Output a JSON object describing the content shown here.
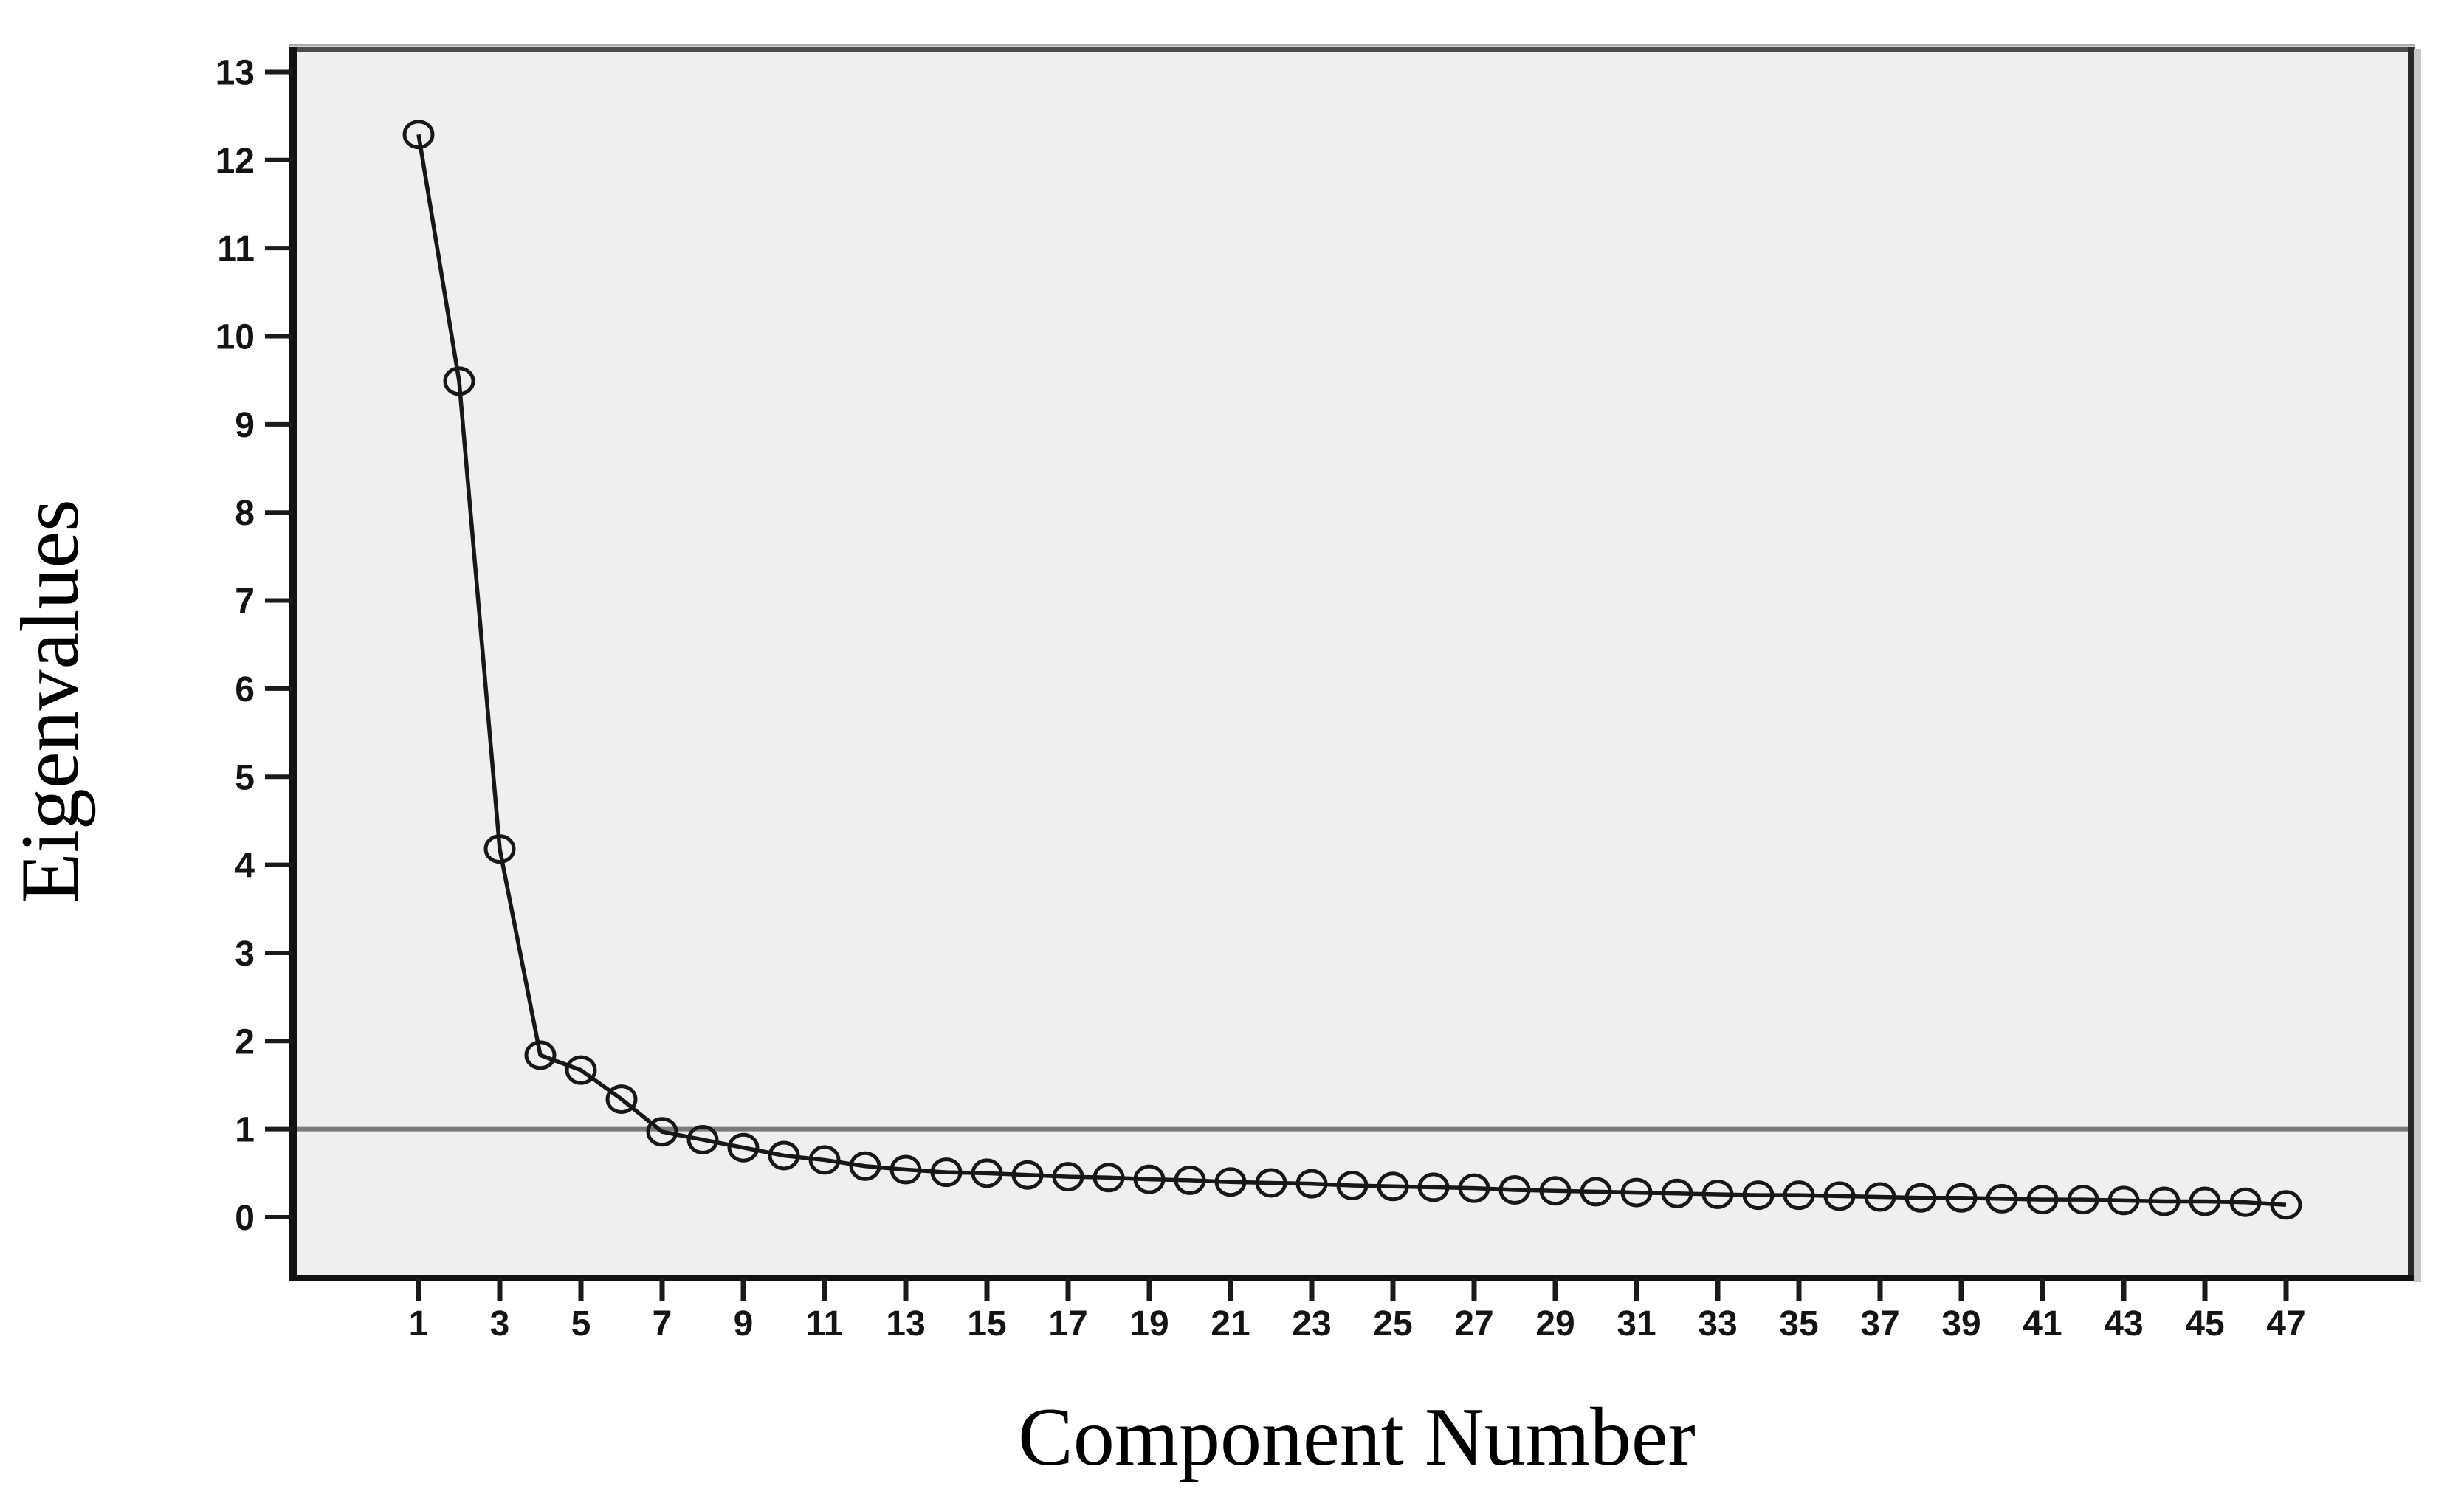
{
  "figure": {
    "kind": "scree-plot",
    "source_style": "SPSS chart output"
  },
  "chart_data": {
    "type": "line",
    "title": "",
    "xlabel": "Component Number",
    "ylabel": "Eigenvalues",
    "x": [
      1,
      2,
      3,
      4,
      5,
      6,
      7,
      8,
      9,
      10,
      11,
      12,
      13,
      14,
      15,
      16,
      17,
      18,
      19,
      20,
      21,
      22,
      23,
      24,
      25,
      26,
      27,
      28,
      29,
      30,
      31,
      32,
      33,
      34,
      35,
      36,
      37,
      38,
      39,
      40,
      41,
      42,
      43,
      44,
      45,
      46,
      47
    ],
    "series": [
      {
        "name": "Eigenvalues",
        "values": [
          12.29,
          9.49,
          4.18,
          1.84,
          1.67,
          1.34,
          0.97,
          0.88,
          0.79,
          0.7,
          0.65,
          0.58,
          0.54,
          0.51,
          0.5,
          0.48,
          0.46,
          0.45,
          0.43,
          0.42,
          0.4,
          0.39,
          0.38,
          0.36,
          0.35,
          0.34,
          0.33,
          0.31,
          0.3,
          0.29,
          0.28,
          0.27,
          0.26,
          0.25,
          0.25,
          0.24,
          0.23,
          0.22,
          0.22,
          0.21,
          0.2,
          0.2,
          0.19,
          0.18,
          0.18,
          0.17,
          0.14
        ]
      }
    ],
    "x_ticks": [
      1,
      3,
      5,
      7,
      9,
      11,
      13,
      15,
      17,
      19,
      21,
      23,
      25,
      27,
      29,
      31,
      33,
      35,
      37,
      39,
      41,
      43,
      45,
      47
    ],
    "y_ticks": [
      0,
      1,
      2,
      3,
      4,
      5,
      6,
      7,
      8,
      9,
      10,
      11,
      12,
      13
    ],
    "ylim": [
      0,
      13
    ],
    "xlim": [
      1,
      47
    ],
    "grid": false,
    "legend": "none",
    "marker": "open-ellipse",
    "reference_line": {
      "y": 1,
      "label": ""
    },
    "colors": {
      "line": "#171717",
      "marker_stroke": "#171717",
      "reference_line": "#7b7b7b",
      "plot_background": "#efefef",
      "page_background": "#ffffff",
      "frame": "#1f1f1f",
      "frame_top": "#4c4c4c",
      "frame_outer_shadow": "#c8c8c8",
      "tick_label": "#141414",
      "axis_title": "#000000"
    }
  }
}
